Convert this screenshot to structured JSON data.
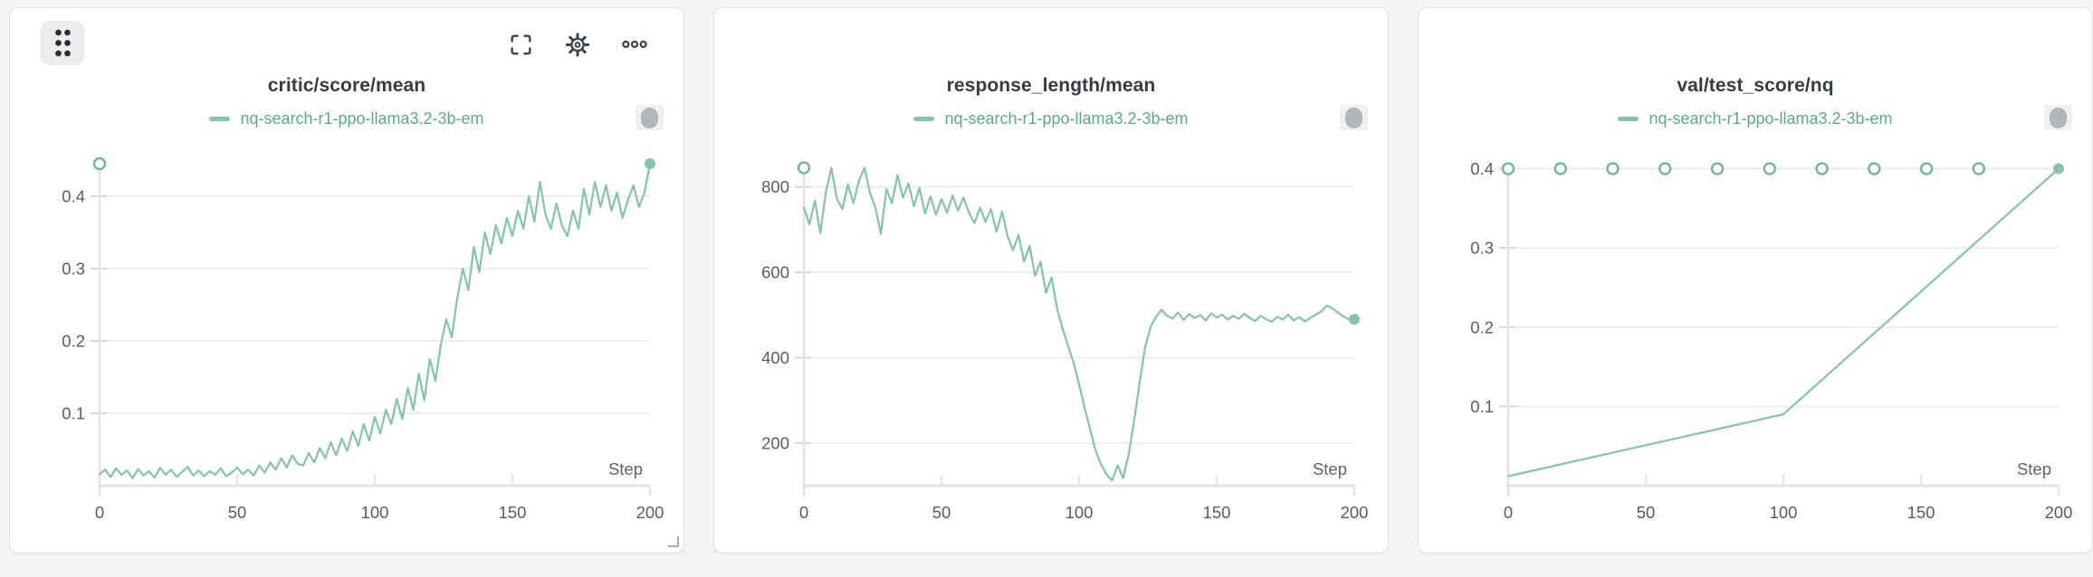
{
  "page": {
    "background_color": "#f4f4f5",
    "panel_background": "#ffffff",
    "accent_color": "#82c5a9",
    "legend_text_color": "#5aa98c",
    "title_color": "#363c44",
    "tick_label_color": "#575c66",
    "gridline_color": "#ededef",
    "axis_color": "#e2e3e5"
  },
  "panels": [
    {
      "hover_toolbar": true,
      "icons": {
        "drag_handle": "grip-dots-icon",
        "fullscreen": "fullscreen-icon",
        "settings": "gear-icon",
        "overflow": "ellipsis-icon",
        "run_pill": "capsule-icon",
        "resize": "resize-corner-icon"
      }
    },
    {
      "hover_toolbar": false,
      "icons": {
        "run_pill": "capsule-icon"
      }
    },
    {
      "hover_toolbar": false,
      "icons": {
        "run_pill": "capsule-icon"
      }
    }
  ],
  "chart_data": [
    {
      "type": "line",
      "title": "critic/score/mean",
      "xlabel": "Step",
      "ylabel": "",
      "xlim": [
        0,
        200
      ],
      "ylim": [
        0,
        0.46
      ],
      "xticks": [
        0,
        50,
        100,
        150,
        200
      ],
      "yticks": [
        0.1,
        0.2,
        0.3,
        0.4
      ],
      "grid": "horizontal",
      "legend_position": "top-center",
      "series": [
        {
          "name": "nq-search-r1-ppo-llama3.2-3b-em",
          "color": "#82c5a9",
          "points": [
            [
              0,
              0.016
            ],
            [
              2,
              0.022
            ],
            [
              4,
              0.012
            ],
            [
              6,
              0.024
            ],
            [
              8,
              0.015
            ],
            [
              10,
              0.021
            ],
            [
              12,
              0.01
            ],
            [
              14,
              0.023
            ],
            [
              16,
              0.014
            ],
            [
              18,
              0.02
            ],
            [
              20,
              0.011
            ],
            [
              22,
              0.025
            ],
            [
              24,
              0.015
            ],
            [
              26,
              0.022
            ],
            [
              28,
              0.012
            ],
            [
              30,
              0.019
            ],
            [
              32,
              0.026
            ],
            [
              34,
              0.014
            ],
            [
              36,
              0.021
            ],
            [
              38,
              0.013
            ],
            [
              40,
              0.02
            ],
            [
              42,
              0.015
            ],
            [
              44,
              0.024
            ],
            [
              46,
              0.013
            ],
            [
              48,
              0.018
            ],
            [
              50,
              0.025
            ],
            [
              52,
              0.016
            ],
            [
              54,
              0.022
            ],
            [
              56,
              0.014
            ],
            [
              58,
              0.028
            ],
            [
              60,
              0.018
            ],
            [
              62,
              0.032
            ],
            [
              64,
              0.022
            ],
            [
              66,
              0.038
            ],
            [
              68,
              0.025
            ],
            [
              70,
              0.042
            ],
            [
              72,
              0.03
            ],
            [
              74,
              0.028
            ],
            [
              76,
              0.045
            ],
            [
              78,
              0.032
            ],
            [
              80,
              0.052
            ],
            [
              82,
              0.038
            ],
            [
              84,
              0.06
            ],
            [
              86,
              0.042
            ],
            [
              88,
              0.065
            ],
            [
              90,
              0.048
            ],
            [
              92,
              0.075
            ],
            [
              94,
              0.055
            ],
            [
              96,
              0.085
            ],
            [
              98,
              0.062
            ],
            [
              100,
              0.095
            ],
            [
              102,
              0.072
            ],
            [
              104,
              0.105
            ],
            [
              106,
              0.085
            ],
            [
              108,
              0.12
            ],
            [
              110,
              0.092
            ],
            [
              112,
              0.135
            ],
            [
              114,
              0.105
            ],
            [
              116,
              0.155
            ],
            [
              118,
              0.118
            ],
            [
              120,
              0.175
            ],
            [
              122,
              0.145
            ],
            [
              124,
              0.195
            ],
            [
              126,
              0.23
            ],
            [
              128,
              0.205
            ],
            [
              130,
              0.26
            ],
            [
              132,
              0.3
            ],
            [
              134,
              0.27
            ],
            [
              136,
              0.33
            ],
            [
              138,
              0.295
            ],
            [
              140,
              0.35
            ],
            [
              142,
              0.32
            ],
            [
              144,
              0.36
            ],
            [
              146,
              0.335
            ],
            [
              148,
              0.37
            ],
            [
              150,
              0.345
            ],
            [
              152,
              0.38
            ],
            [
              154,
              0.355
            ],
            [
              156,
              0.4
            ],
            [
              158,
              0.365
            ],
            [
              160,
              0.42
            ],
            [
              162,
              0.375
            ],
            [
              164,
              0.355
            ],
            [
              166,
              0.39
            ],
            [
              168,
              0.36
            ],
            [
              170,
              0.345
            ],
            [
              172,
              0.38
            ],
            [
              174,
              0.355
            ],
            [
              176,
              0.41
            ],
            [
              178,
              0.375
            ],
            [
              180,
              0.42
            ],
            [
              182,
              0.385
            ],
            [
              184,
              0.415
            ],
            [
              186,
              0.38
            ],
            [
              188,
              0.405
            ],
            [
              190,
              0.37
            ],
            [
              192,
              0.395
            ],
            [
              194,
              0.415
            ],
            [
              196,
              0.385
            ],
            [
              198,
              0.405
            ],
            [
              200,
              0.445
            ]
          ]
        }
      ],
      "open_markers": [
        [
          0,
          0.445
        ]
      ],
      "end_marker": [
        200,
        0.445
      ]
    },
    {
      "type": "line",
      "title": "response_length/mean",
      "xlabel": "Step",
      "ylabel": "",
      "xlim": [
        0,
        200
      ],
      "ylim": [
        100,
        880
      ],
      "xticks": [
        0,
        50,
        100,
        150,
        200
      ],
      "yticks": [
        200,
        400,
        600,
        800
      ],
      "grid": "horizontal",
      "legend_position": "top-center",
      "series": [
        {
          "name": "nq-search-r1-ppo-llama3.2-3b-em",
          "color": "#82c5a9",
          "points": [
            [
              0,
              752
            ],
            [
              2,
              712
            ],
            [
              4,
              768
            ],
            [
              6,
              692
            ],
            [
              8,
              788
            ],
            [
              10,
              845
            ],
            [
              12,
              772
            ],
            [
              14,
              748
            ],
            [
              16,
              806
            ],
            [
              18,
              762
            ],
            [
              20,
              815
            ],
            [
              22,
              845
            ],
            [
              24,
              786
            ],
            [
              26,
              752
            ],
            [
              28,
              690
            ],
            [
              30,
              795
            ],
            [
              32,
              762
            ],
            [
              34,
              828
            ],
            [
              36,
              775
            ],
            [
              38,
              808
            ],
            [
              40,
              755
            ],
            [
              42,
              798
            ],
            [
              44,
              738
            ],
            [
              46,
              778
            ],
            [
              48,
              735
            ],
            [
              50,
              772
            ],
            [
              52,
              740
            ],
            [
              54,
              780
            ],
            [
              56,
              745
            ],
            [
              58,
              775
            ],
            [
              60,
              740
            ],
            [
              62,
              715
            ],
            [
              64,
              752
            ],
            [
              66,
              718
            ],
            [
              68,
              748
            ],
            [
              70,
              695
            ],
            [
              72,
              742
            ],
            [
              74,
              685
            ],
            [
              76,
              652
            ],
            [
              78,
              688
            ],
            [
              80,
              625
            ],
            [
              82,
              662
            ],
            [
              84,
              592
            ],
            [
              86,
              625
            ],
            [
              88,
              552
            ],
            [
              90,
              588
            ],
            [
              92,
              515
            ],
            [
              94,
              468
            ],
            [
              96,
              428
            ],
            [
              98,
              388
            ],
            [
              100,
              338
            ],
            [
              102,
              282
            ],
            [
              104,
              232
            ],
            [
              106,
              182
            ],
            [
              108,
              150
            ],
            [
              110,
              126
            ],
            [
              112,
              112
            ],
            [
              114,
              148
            ],
            [
              116,
              118
            ],
            [
              118,
              172
            ],
            [
              120,
              252
            ],
            [
              122,
              342
            ],
            [
              124,
              425
            ],
            [
              126,
              472
            ],
            [
              128,
              496
            ],
            [
              130,
              512
            ],
            [
              132,
              498
            ],
            [
              134,
              492
            ],
            [
              136,
              506
            ],
            [
              138,
              488
            ],
            [
              140,
              502
            ],
            [
              142,
              493
            ],
            [
              144,
              500
            ],
            [
              146,
              487
            ],
            [
              148,
              504
            ],
            [
              150,
              494
            ],
            [
              152,
              501
            ],
            [
              154,
              489
            ],
            [
              156,
              498
            ],
            [
              158,
              491
            ],
            [
              160,
              503
            ],
            [
              162,
              493
            ],
            [
              164,
              486
            ],
            [
              166,
              498
            ],
            [
              168,
              490
            ],
            [
              170,
              484
            ],
            [
              172,
              496
            ],
            [
              174,
              489
            ],
            [
              176,
              501
            ],
            [
              178,
              487
            ],
            [
              180,
              495
            ],
            [
              182,
              485
            ],
            [
              184,
              493
            ],
            [
              186,
              501
            ],
            [
              188,
              508
            ],
            [
              190,
              522
            ],
            [
              192,
              516
            ],
            [
              194,
              506
            ],
            [
              196,
              497
            ],
            [
              198,
              490
            ],
            [
              200,
              490
            ]
          ]
        }
      ],
      "open_markers": [
        [
          0,
          845
        ]
      ],
      "end_marker": [
        200,
        490
      ]
    },
    {
      "type": "line",
      "title": "val/test_score/nq",
      "xlabel": "Step",
      "ylabel": "",
      "xlim": [
        0,
        200
      ],
      "ylim": [
        0,
        0.42
      ],
      "xticks": [
        0,
        50,
        100,
        150,
        200
      ],
      "yticks": [
        0.1,
        0.2,
        0.3,
        0.4
      ],
      "grid": "horizontal",
      "legend_position": "top-center",
      "series": [
        {
          "name": "nq-search-r1-ppo-llama3.2-3b-em",
          "color": "#82c5a9",
          "points": [
            [
              0,
              0.012
            ],
            [
              100,
              0.09
            ],
            [
              200,
              0.4
            ]
          ]
        }
      ],
      "open_markers": [
        [
          0,
          0.4
        ],
        [
          19,
          0.4
        ],
        [
          38,
          0.4
        ],
        [
          57,
          0.4
        ],
        [
          76,
          0.4
        ],
        [
          95,
          0.4
        ],
        [
          114,
          0.4
        ],
        [
          133,
          0.4
        ],
        [
          152,
          0.4
        ],
        [
          171,
          0.4
        ]
      ],
      "end_marker": [
        200,
        0.4
      ]
    }
  ]
}
